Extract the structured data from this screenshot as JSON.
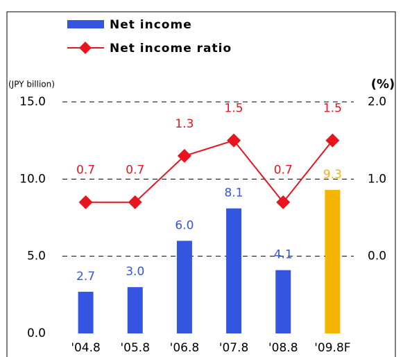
{
  "chart_data": {
    "type": "bar_line",
    "categories": [
      "'04.8",
      "'05.8",
      "'06.8",
      "'07.8",
      "'08.8",
      "'09.8F"
    ],
    "series": [
      {
        "name": "Net income",
        "type": "bar",
        "color": "#3355e0",
        "colors": [
          "#3355e0",
          "#3355e0",
          "#3355e0",
          "#3355e0",
          "#3355e0",
          "#f5b400"
        ],
        "values": [
          2.7,
          3.0,
          6.0,
          8.1,
          4.1,
          9.3
        ],
        "value_labels": [
          "2.7",
          "3.0",
          "6.0",
          "8.1",
          "4.1",
          "9.3"
        ]
      },
      {
        "name": "Net income ratio",
        "type": "line",
        "color": "#e8141e",
        "axis": "y2",
        "values": [
          0.7,
          0.7,
          1.3,
          1.5,
          0.7,
          1.5
        ]
      }
    ],
    "ylabel": "(JPY billion)",
    "y2label": "(%)",
    "ylim": [
      0,
      15
    ],
    "yticks": [
      {
        "value": 0,
        "label": "0.0"
      },
      {
        "value": 5,
        "label": "5.0"
      },
      {
        "value": 10,
        "label": "10.0"
      },
      {
        "value": 15,
        "label": "15.0"
      }
    ],
    "y2lim": [
      -1,
      2
    ],
    "y2ticks": [
      {
        "value": 0,
        "label": "0.0"
      },
      {
        "value": 1,
        "label": "1.0"
      },
      {
        "value": 2,
        "label": "2.0"
      }
    ],
    "grid": true
  }
}
